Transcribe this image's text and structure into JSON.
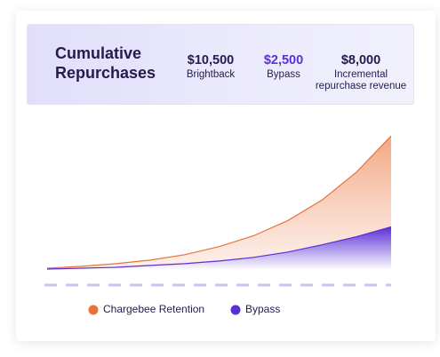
{
  "chart_data": {
    "type": "area",
    "title": "Cumulative Repurchases",
    "stats": [
      {
        "value": "$10,500",
        "label": "Brightback"
      },
      {
        "value": "$2,500",
        "label": "Bypass"
      },
      {
        "value": "$8,000",
        "label": "Incremental repurchase revenue"
      }
    ],
    "x": [
      0,
      1,
      2,
      3,
      4,
      5,
      6,
      7,
      8,
      9,
      10
    ],
    "xlim": [
      0,
      10
    ],
    "ylim": [
      0,
      160
    ],
    "series": [
      {
        "name": "Chargebee Retention",
        "color": "#e8733a",
        "values": [
          2,
          4,
          7,
          11,
          17,
          26,
          38,
          55,
          78,
          109,
          149
        ]
      },
      {
        "name": "Bypass",
        "color": "#5b2fd6",
        "values": [
          1,
          2,
          3,
          5,
          7,
          10,
          14,
          20,
          28,
          37,
          48
        ]
      }
    ]
  }
}
